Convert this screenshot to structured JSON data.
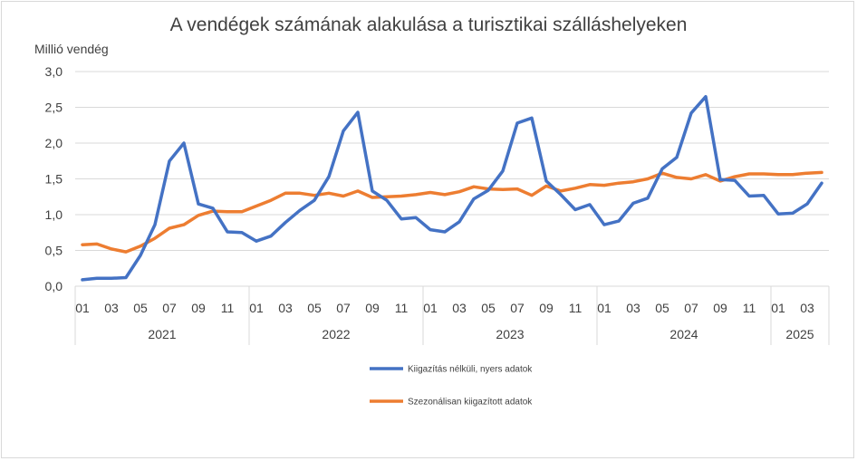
{
  "chart_data": {
    "type": "line",
    "title": "A vendégek számának alakulása a turisztikai szálláshelyeken",
    "ylabel": "Millió vendég",
    "ylim": [
      0,
      3
    ],
    "y_ticks": [
      "0,0",
      "0,5",
      "1,0",
      "1,5",
      "2,0",
      "2,5",
      "3,0"
    ],
    "month_ticks": [
      "01",
      "03",
      "05",
      "07",
      "09",
      "11",
      "01",
      "03",
      "05",
      "07",
      "09",
      "11",
      "01",
      "03",
      "05",
      "07",
      "09",
      "11",
      "01",
      "03",
      "05",
      "07",
      "09",
      "11",
      "01",
      "03"
    ],
    "years": [
      {
        "label": "2021",
        "months": 12
      },
      {
        "label": "2022",
        "months": 12
      },
      {
        "label": "2023",
        "months": 12
      },
      {
        "label": "2024",
        "months": 12
      },
      {
        "label": "2025",
        "months": 4
      }
    ],
    "grid": true,
    "series": [
      {
        "name": "Kiigazítás nélküli, nyers adatok",
        "color": "#4472c4",
        "values": [
          0.09,
          0.11,
          0.11,
          0.12,
          0.43,
          0.86,
          1.75,
          2.0,
          1.15,
          1.09,
          0.76,
          0.75,
          0.63,
          0.7,
          0.89,
          1.06,
          1.2,
          1.53,
          2.17,
          2.43,
          1.33,
          1.2,
          0.94,
          0.96,
          0.79,
          0.76,
          0.9,
          1.22,
          1.34,
          1.61,
          2.28,
          2.35,
          1.47,
          1.28,
          1.07,
          1.14,
          0.86,
          0.91,
          1.16,
          1.23,
          1.64,
          1.8,
          2.42,
          2.65,
          1.49,
          1.48,
          1.26,
          1.27,
          1.01,
          1.02,
          1.15,
          1.44
        ]
      },
      {
        "name": "Szezonálisan kiigazított adatok",
        "color": "#ed7d31",
        "values": [
          0.58,
          0.59,
          0.52,
          0.48,
          0.56,
          0.67,
          0.81,
          0.86,
          0.99,
          1.05,
          1.04,
          1.04,
          1.12,
          1.2,
          1.3,
          1.3,
          1.27,
          1.3,
          1.26,
          1.33,
          1.24,
          1.25,
          1.26,
          1.28,
          1.31,
          1.28,
          1.32,
          1.39,
          1.36,
          1.35,
          1.36,
          1.27,
          1.4,
          1.33,
          1.37,
          1.42,
          1.41,
          1.44,
          1.46,
          1.5,
          1.58,
          1.52,
          1.5,
          1.56,
          1.47,
          1.53,
          1.57,
          1.57,
          1.56,
          1.56,
          1.58,
          1.59
        ]
      }
    ]
  }
}
